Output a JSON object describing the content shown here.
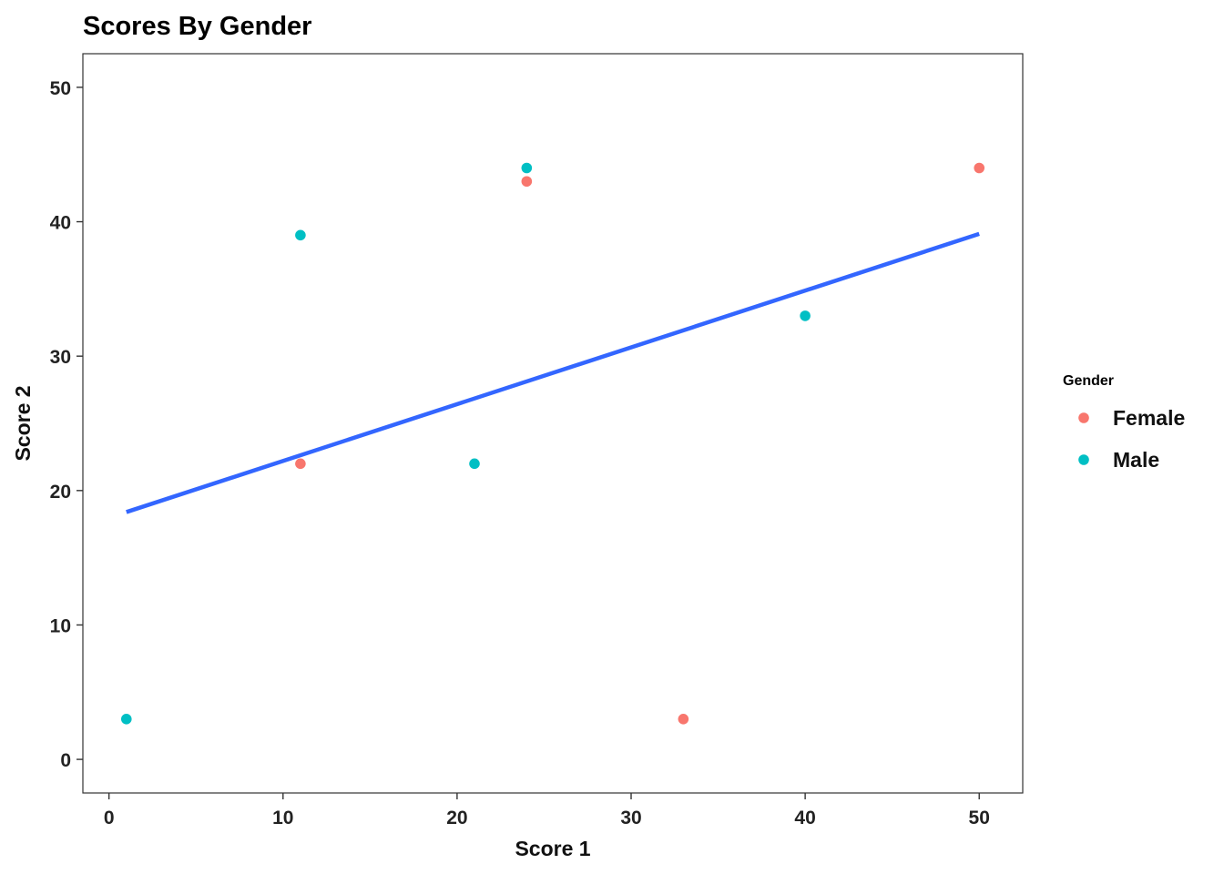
{
  "chart_data": {
    "type": "scatter",
    "title": "Scores By Gender",
    "xlabel": "Score 1",
    "ylabel": "Score 2",
    "xlim": [
      -1.5,
      52.5
    ],
    "ylim": [
      -2.5,
      52.5
    ],
    "x_ticks": [
      0,
      10,
      20,
      30,
      40,
      50
    ],
    "y_ticks": [
      0,
      10,
      20,
      30,
      40,
      50
    ],
    "x_tick_labels": [
      "0",
      "10",
      "20",
      "30",
      "40",
      "50"
    ],
    "y_tick_labels": [
      "0",
      "10",
      "20",
      "30",
      "40",
      "50"
    ],
    "grid": false,
    "legend": {
      "title": "Gender",
      "placement": "right"
    },
    "series": [
      {
        "name": "Female",
        "color": "#F8766D",
        "points": [
          {
            "x": 11,
            "y": 22
          },
          {
            "x": 24,
            "y": 43
          },
          {
            "x": 33,
            "y": 3
          },
          {
            "x": 50,
            "y": 44
          }
        ]
      },
      {
        "name": "Male",
        "color": "#00BFC4",
        "points": [
          {
            "x": 1,
            "y": 3
          },
          {
            "x": 11,
            "y": 39
          },
          {
            "x": 21,
            "y": 22
          },
          {
            "x": 24,
            "y": 44
          },
          {
            "x": 40,
            "y": 33
          }
        ]
      }
    ],
    "trend_line": {
      "color": "#3366FF",
      "x": [
        1,
        50
      ],
      "y": [
        18.4,
        39.1
      ]
    }
  }
}
